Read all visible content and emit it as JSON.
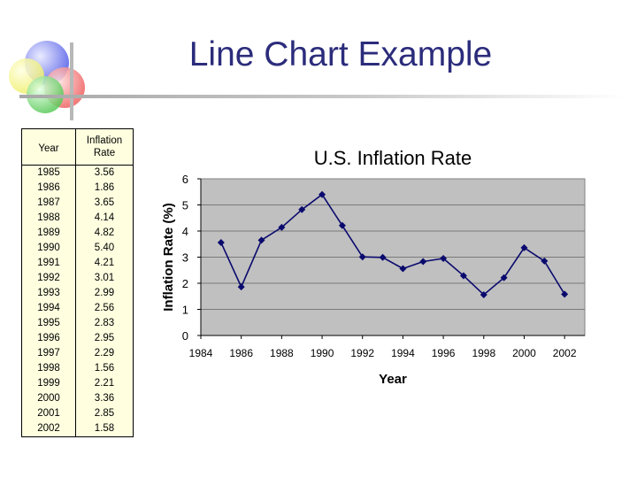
{
  "slide": {
    "title": "Line Chart Example"
  },
  "table": {
    "headers": [
      "Year",
      "Inflation Rate"
    ],
    "rows": [
      [
        "1985",
        "3.56"
      ],
      [
        "1986",
        "1.86"
      ],
      [
        "1987",
        "3.65"
      ],
      [
        "1988",
        "4.14"
      ],
      [
        "1989",
        "4.82"
      ],
      [
        "1990",
        "5.40"
      ],
      [
        "1991",
        "4.21"
      ],
      [
        "1992",
        "3.01"
      ],
      [
        "1993",
        "2.99"
      ],
      [
        "1994",
        "2.56"
      ],
      [
        "1995",
        "2.83"
      ],
      [
        "1996",
        "2.95"
      ],
      [
        "1997",
        "2.29"
      ],
      [
        "1998",
        "1.56"
      ],
      [
        "1999",
        "2.21"
      ],
      [
        "2000",
        "3.36"
      ],
      [
        "2001",
        "2.85"
      ],
      [
        "2002",
        "1.58"
      ]
    ]
  },
  "chart_data": {
    "type": "line",
    "title": "U.S. Inflation Rate",
    "xlabel": "Year",
    "ylabel": "Inflation Rate (%)",
    "x": [
      1985,
      1986,
      1987,
      1988,
      1989,
      1990,
      1991,
      1992,
      1993,
      1994,
      1995,
      1996,
      1997,
      1998,
      1999,
      2000,
      2001,
      2002
    ],
    "series": [
      {
        "name": "Inflation Rate",
        "values": [
          3.56,
          1.86,
          3.65,
          4.14,
          4.82,
          5.4,
          4.21,
          3.01,
          2.99,
          2.56,
          2.83,
          2.95,
          2.29,
          1.56,
          2.21,
          3.36,
          2.85,
          1.58
        ]
      }
    ],
    "xlim": [
      1984,
      2003
    ],
    "ylim": [
      0,
      6
    ],
    "xticks": [
      1984,
      1986,
      1988,
      1990,
      1992,
      1994,
      1996,
      1998,
      2000,
      2002
    ],
    "yticks": [
      0,
      1,
      2,
      3,
      4,
      5,
      6
    ],
    "grid": true,
    "colors": {
      "line": "#0a0a6e",
      "plot_bg": "#c0c0c0",
      "grid": "#7a7a7a"
    }
  }
}
